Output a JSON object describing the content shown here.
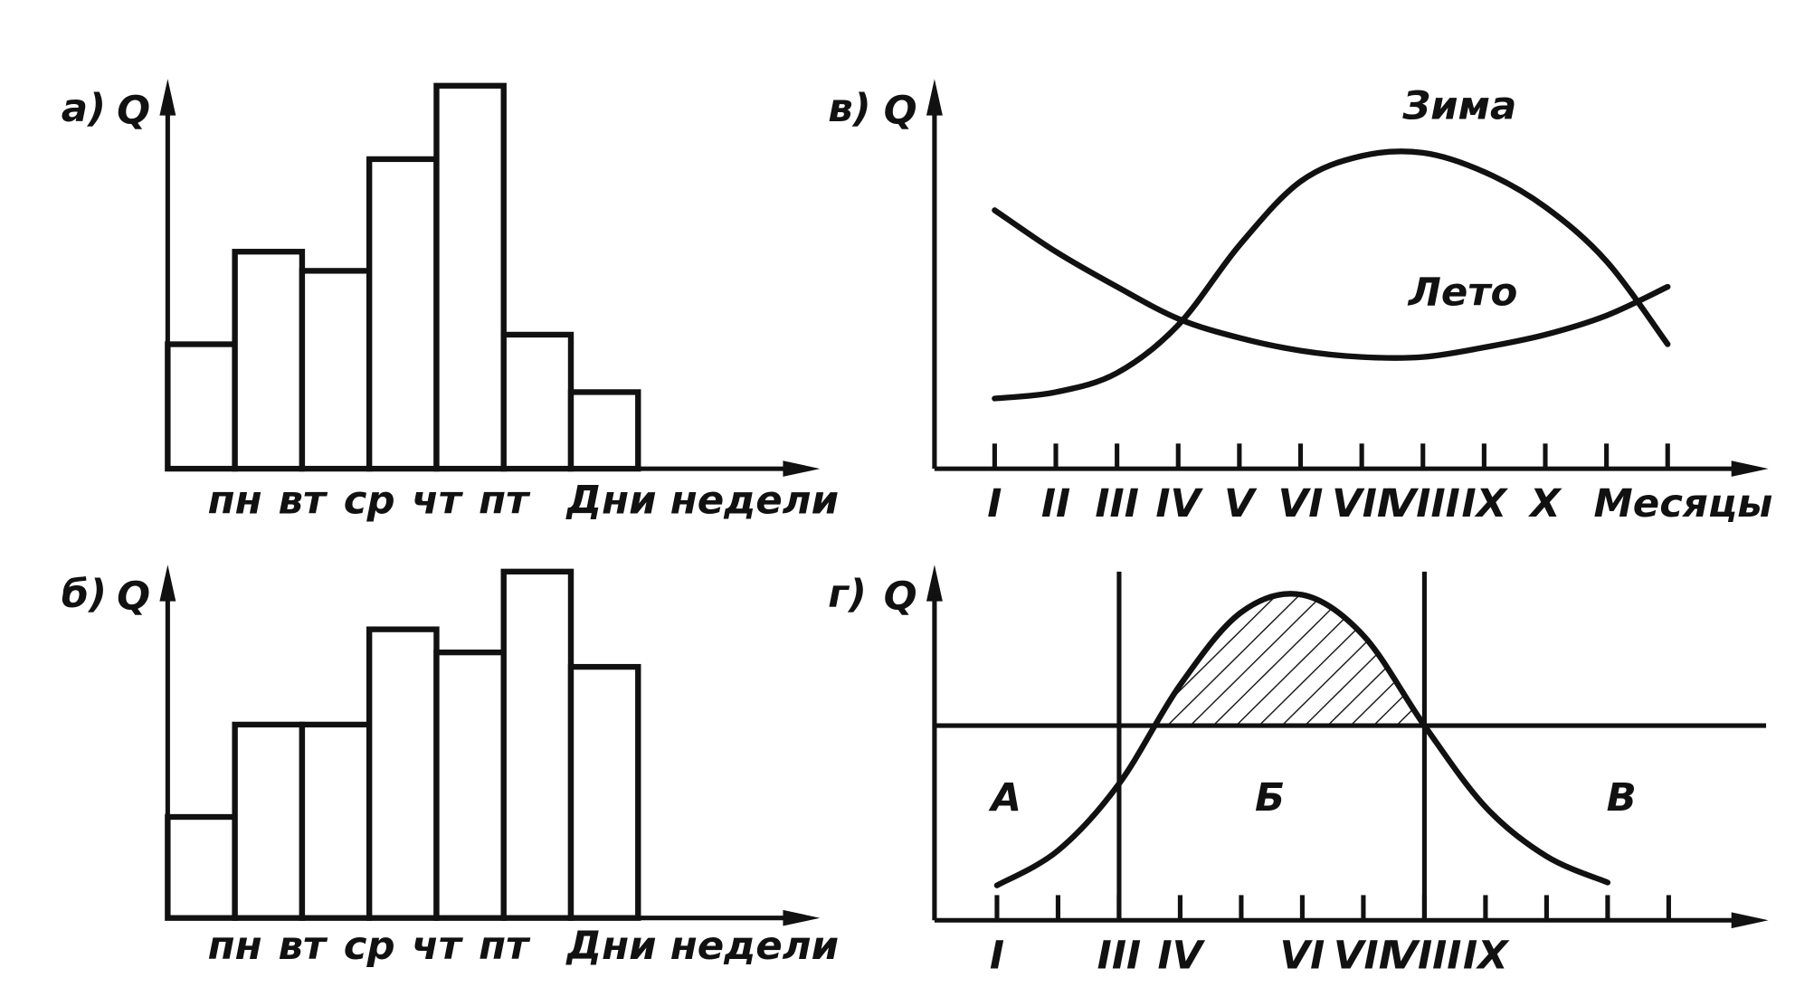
{
  "chart_data": [
    {
      "type": "bar",
      "panel": "а)",
      "ylabel": "Q",
      "xlabel": "Дни недели",
      "categories": [
        null,
        "пн",
        "вт",
        "ср",
        "чт",
        "пт",
        null
      ],
      "values": [
        3.9,
        6.8,
        6.2,
        9.7,
        12.0,
        4.2,
        2.4
      ],
      "ylim": [
        0,
        12
      ],
      "color": "#ffffff"
    },
    {
      "type": "bar",
      "panel": "б)",
      "ylabel": "Q",
      "xlabel": "Дни недели",
      "categories": [
        null,
        "пн",
        "вт",
        "ср",
        "чт",
        "пт",
        null
      ],
      "values": [
        3.5,
        6.7,
        6.7,
        10.0,
        9.2,
        12.0,
        8.7
      ],
      "ylim": [
        0,
        12
      ],
      "color": "#ffffff"
    },
    {
      "type": "line",
      "panel": "в)",
      "ylabel": "Q",
      "xlabel": "Месяцы",
      "categories": [
        "I",
        "II",
        "III",
        "IV",
        "V",
        "VI",
        "VII",
        "VIII",
        "IX",
        "X",
        null,
        null
      ],
      "series": [
        {
          "name": "Зима",
          "color": "#111111",
          "values": [
            2.2,
            2.4,
            3.0,
            4.5,
            7.0,
            9.0,
            9.8,
            9.9,
            9.3,
            8.2,
            6.5,
            3.9
          ]
        },
        {
          "name": "Лето",
          "color": "#111111",
          "values": [
            8.1,
            6.8,
            5.7,
            4.7,
            4.1,
            3.7,
            3.5,
            3.5,
            3.8,
            4.2,
            4.8,
            5.7
          ]
        }
      ],
      "ylim": [
        0,
        12
      ]
    },
    {
      "type": "line",
      "panel": "г)",
      "ylabel": "Q",
      "categories": [
        "I",
        null,
        "III",
        "IV",
        null,
        "VI",
        "VII",
        "VIII",
        "IX",
        null,
        null,
        null
      ],
      "series": [
        {
          "color": "#111111",
          "values": [
            1.2,
            2.4,
            4.7,
            8.1,
            10.6,
            11.2,
            9.8,
            6.7,
            3.9,
            2.2,
            1.3,
            null
          ]
        }
      ],
      "ylim": [
        0,
        12
      ],
      "threshold": 6.7,
      "dividers": [
        2,
        7
      ],
      "annotations": [
        "А",
        "Б",
        "В"
      ]
    }
  ]
}
